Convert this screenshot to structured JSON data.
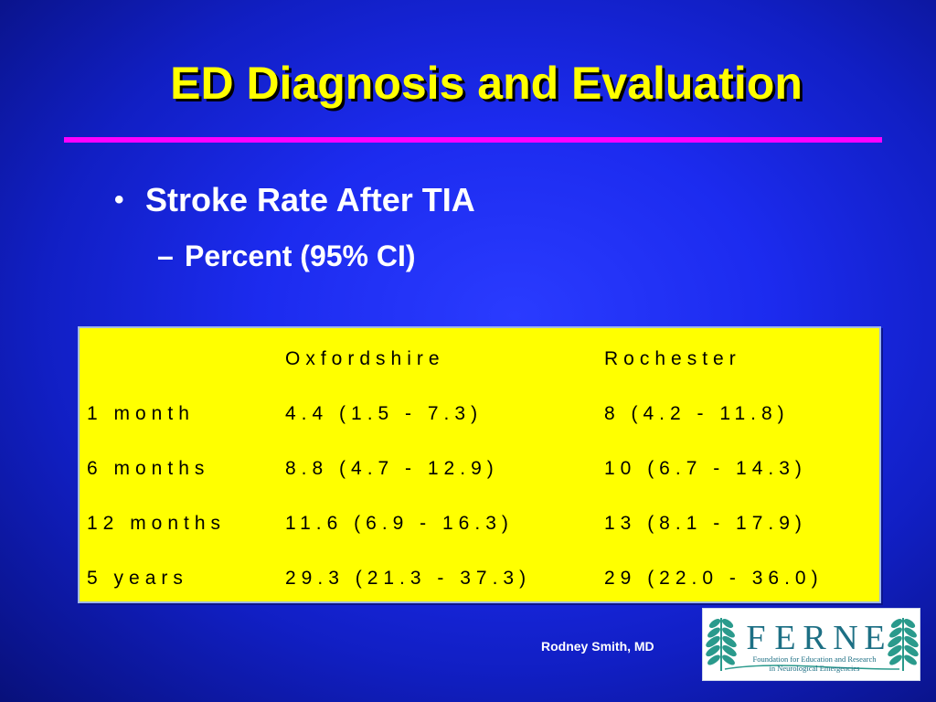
{
  "slide": {
    "title": "ED Diagnosis and Evaluation",
    "bullet": "Stroke Rate After TIA",
    "sub_bullet": "Percent (95% CI)",
    "bullet_symbol": "•",
    "sub_bullet_symbol": "–"
  },
  "table": {
    "headers": [
      "",
      "Oxfordshire",
      "Rochester"
    ],
    "rows": [
      [
        "1 month",
        "4.4 (1.5 - 7.3)",
        "8 (4.2 - 11.8)"
      ],
      [
        "6 months",
        "8.8 (4.7 - 12.9)",
        "10 (6.7 - 14.3)"
      ],
      [
        "12 months",
        "11.6 (6.9 - 16.3)",
        "13 (8.1 - 17.9)"
      ],
      [
        "5 years",
        "29.3 (21.3 - 37.3)",
        "29 (22.0 - 36.0)"
      ]
    ]
  },
  "footer": {
    "author": "Rodney Smith, MD"
  },
  "logo": {
    "letters": [
      "F",
      "E",
      "R",
      "N",
      "E"
    ],
    "tagline_1": "Foundation for Education and Research",
    "tagline_2": "in Neurological Emergencies"
  },
  "colors": {
    "title": "#ffff00",
    "rule": "#ff00ff",
    "table_bg": "#ffff00",
    "logo_text": "#1d6f84",
    "logo_fern": "#2a9a8c"
  }
}
